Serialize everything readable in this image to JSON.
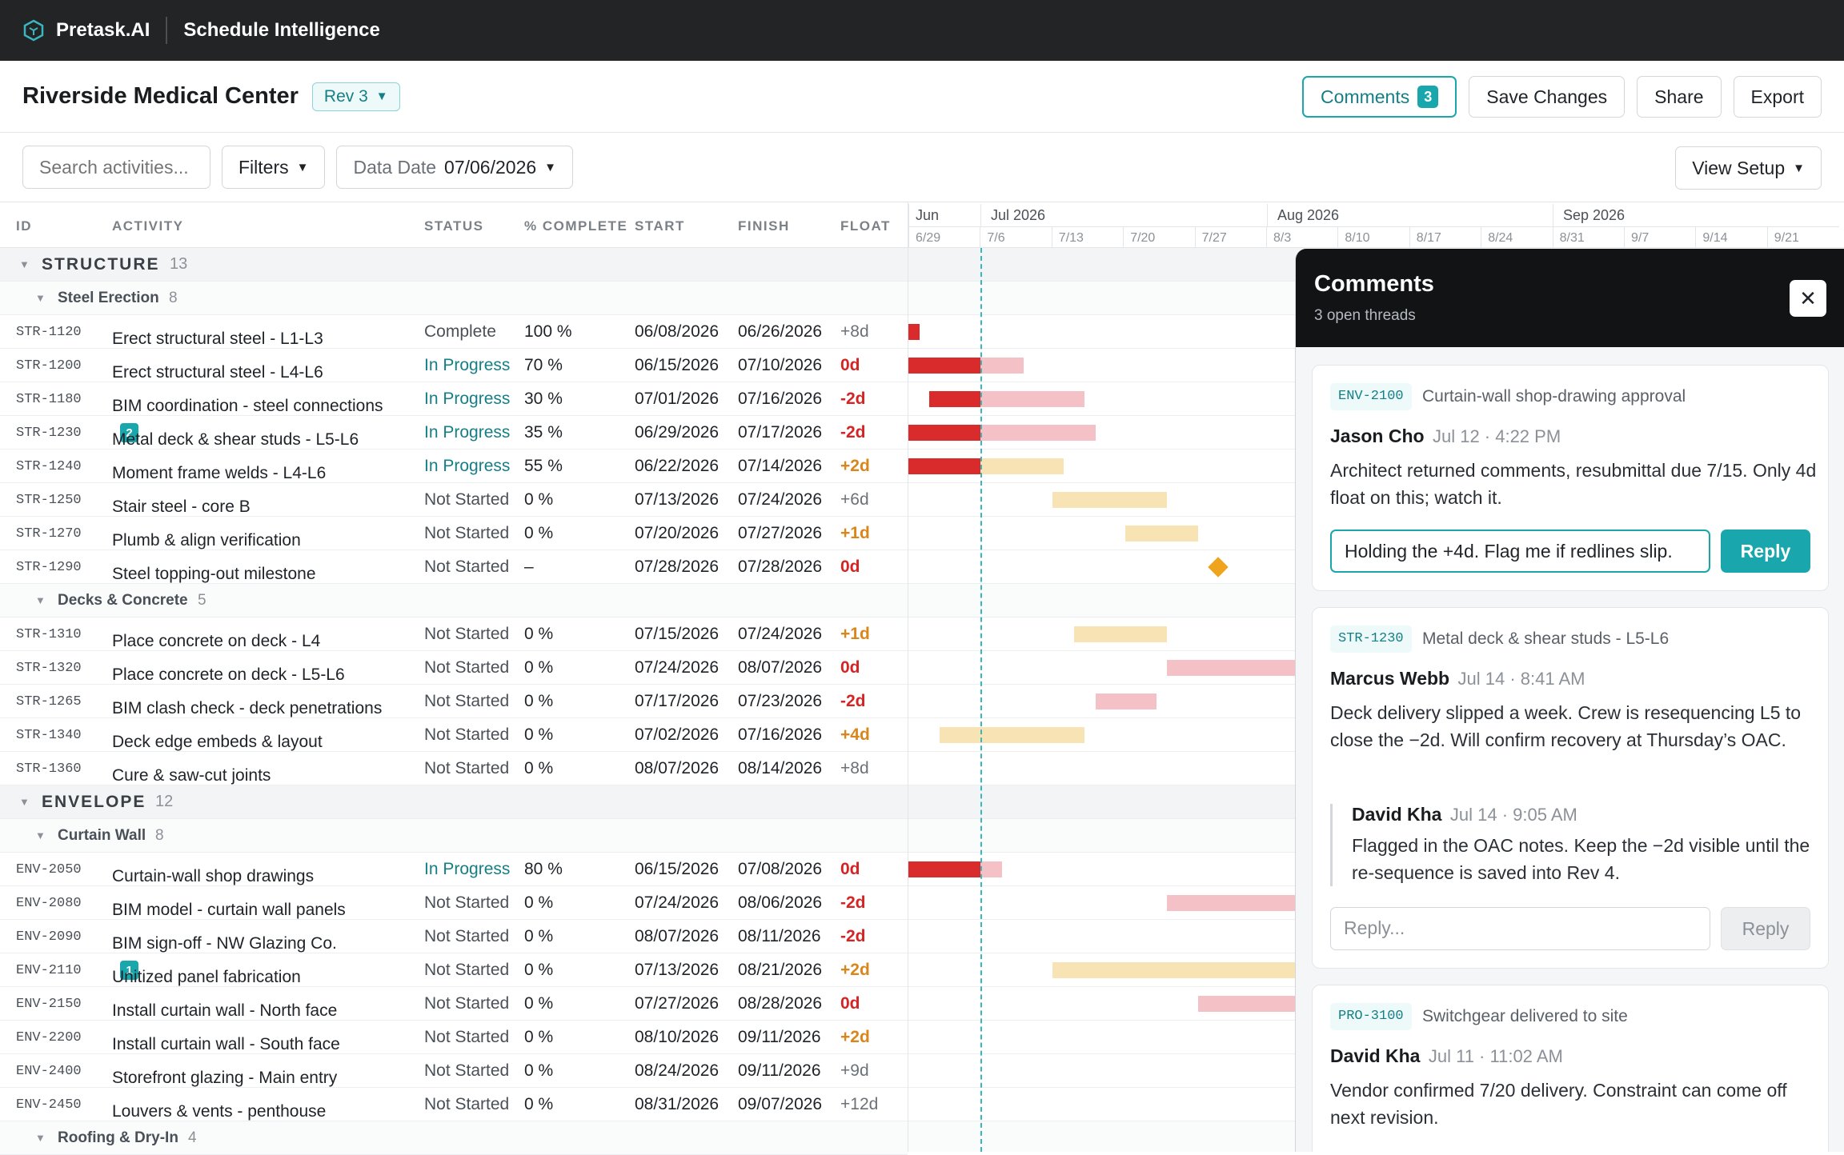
{
  "topbar": {
    "brand": "Pretask.AI",
    "app": "Schedule Intelligence"
  },
  "header": {
    "title": "Riverside Medical Center",
    "revision": "Rev 3",
    "comments_label": "Comments",
    "comments_count": "3",
    "save_label": "Save Changes",
    "share_label": "Share",
    "export_label": "Export"
  },
  "toolbar": {
    "search_placeholder": "Search activities...",
    "filters_label": "Filters",
    "data_date_label": "Data Date",
    "data_date_value": "07/06/2026",
    "view_setup_label": "View Setup"
  },
  "columns": {
    "id": "ID",
    "activity": "ACTIVITY",
    "status": "STATUS",
    "pct": "% COMPLETE",
    "start": "START",
    "finish": "FINISH",
    "float": "FLOAT"
  },
  "timeline": {
    "months": [
      "Jun",
      "Jul 2026",
      "Aug 2026",
      "Sep 2026"
    ],
    "weeks": [
      "6/29",
      "7/6",
      "7/13",
      "7/20",
      "7/27",
      "8/3",
      "8/10",
      "8/17",
      "8/24",
      "8/31",
      "9/7",
      "9/14",
      "9/21"
    ]
  },
  "rows": [
    {
      "type": "group",
      "name": "STRUCTURE",
      "count": "13"
    },
    {
      "type": "sub",
      "name": "Steel Erection",
      "count": "8"
    },
    {
      "type": "act",
      "id": "STR-1120",
      "name": "Erect structural steel - L1-L3",
      "status": "Complete",
      "pct": "100 %",
      "start": "06/08/2026",
      "finish": "06/26/2026",
      "float": "+8d",
      "float_kind": "pos",
      "st": "c",
      "bar": {
        "done": [
          0,
          14
        ],
        "rest": null,
        "kind": "red"
      }
    },
    {
      "type": "act",
      "id": "STR-1200",
      "name": "Erect structural steel - L4-L6",
      "status": "In Progress",
      "pct": "70 %",
      "start": "06/15/2026",
      "finish": "07/10/2026",
      "float": "0d",
      "float_kind": "red",
      "st": "ip",
      "bar": {
        "done": [
          0,
          90
        ],
        "rest": [
          90,
          144
        ],
        "kind": "red"
      }
    },
    {
      "type": "act",
      "id": "STR-1180",
      "name": "BIM coordination - steel connections",
      "status": "In Progress",
      "pct": "30 %",
      "start": "07/01/2026",
      "finish": "07/16/2026",
      "float": "-2d",
      "float_kind": "red",
      "st": "ip",
      "bar": {
        "done": [
          26,
          90
        ],
        "rest": [
          90,
          220
        ],
        "kind": "red"
      }
    },
    {
      "type": "act",
      "id": "STR-1230",
      "name": "Metal deck & shear studs - L5-L6",
      "badge": "2",
      "status": "In Progress",
      "pct": "35 %",
      "start": "06/29/2026",
      "finish": "07/17/2026",
      "float": "-2d",
      "float_kind": "red",
      "st": "ip",
      "bar": {
        "done": [
          0,
          90
        ],
        "rest": [
          90,
          234
        ],
        "kind": "red"
      }
    },
    {
      "type": "act",
      "id": "STR-1240",
      "name": "Moment frame welds - L4-L6",
      "status": "In Progress",
      "pct": "55 %",
      "start": "06/22/2026",
      "finish": "07/14/2026",
      "float": "+2d",
      "float_kind": "org",
      "st": "ip",
      "bar": {
        "done": [
          0,
          90
        ],
        "rest": [
          90,
          194
        ],
        "kind": "org"
      }
    },
    {
      "type": "act",
      "id": "STR-1250",
      "name": "Stair steel - core B",
      "status": "Not Started",
      "pct": "0 %",
      "start": "07/13/2026",
      "finish": "07/24/2026",
      "float": "+6d",
      "float_kind": "pos",
      "st": "ns",
      "bar": {
        "done": null,
        "rest": [
          180,
          323
        ],
        "kind": "org"
      }
    },
    {
      "type": "act",
      "id": "STR-1270",
      "name": "Plumb & align verification",
      "status": "Not Started",
      "pct": "0 %",
      "start": "07/20/2026",
      "finish": "07/27/2026",
      "float": "+1d",
      "float_kind": "org",
      "st": "ns",
      "bar": {
        "done": null,
        "rest": [
          271,
          362
        ],
        "kind": "org"
      }
    },
    {
      "type": "act",
      "id": "STR-1290",
      "name": "Steel topping-out milestone",
      "status": "Not Started",
      "pct": "–",
      "start": "07/28/2026",
      "finish": "07/28/2026",
      "float": "0d",
      "float_kind": "red",
      "st": "ns",
      "bar": {
        "milestone": 378
      }
    },
    {
      "type": "sub",
      "name": "Decks & Concrete",
      "count": "5"
    },
    {
      "type": "act",
      "id": "STR-1310",
      "name": "Place concrete on deck - L4",
      "status": "Not Started",
      "pct": "0 %",
      "start": "07/15/2026",
      "finish": "07/24/2026",
      "float": "+1d",
      "float_kind": "org",
      "st": "ns",
      "bar": {
        "done": null,
        "rest": [
          207,
          323
        ],
        "kind": "org"
      }
    },
    {
      "type": "act",
      "id": "STR-1320",
      "name": "Place concrete on deck - L5-L6",
      "status": "Not Started",
      "pct": "0 %",
      "start": "07/24/2026",
      "finish": "08/07/2026",
      "float": "0d",
      "float_kind": "red",
      "st": "ns",
      "bar": {
        "done": null,
        "rest": [
          323,
          520
        ],
        "kind": "red"
      }
    },
    {
      "type": "act",
      "id": "STR-1265",
      "name": "BIM clash check - deck penetrations",
      "status": "Not Started",
      "pct": "0 %",
      "start": "07/17/2026",
      "finish": "07/23/2026",
      "float": "-2d",
      "float_kind": "red",
      "st": "ns",
      "bar": {
        "done": null,
        "rest": [
          234,
          310
        ],
        "kind": "red"
      }
    },
    {
      "type": "act",
      "id": "STR-1340",
      "name": "Deck edge embeds & layout",
      "status": "Not Started",
      "pct": "0 %",
      "start": "07/02/2026",
      "finish": "07/16/2026",
      "float": "+4d",
      "float_kind": "org",
      "st": "ns",
      "bar": {
        "done": null,
        "rest": [
          39,
          220
        ],
        "kind": "org"
      }
    },
    {
      "type": "act",
      "id": "STR-1360",
      "name": "Cure & saw-cut joints",
      "status": "Not Started",
      "pct": "0 %",
      "start": "08/07/2026",
      "finish": "08/14/2026",
      "float": "+8d",
      "float_kind": "pos",
      "st": "ns",
      "bar": {
        "done": null,
        "rest": null
      }
    },
    {
      "type": "group",
      "name": "ENVELOPE",
      "count": "12"
    },
    {
      "type": "sub",
      "name": "Curtain Wall",
      "count": "8"
    },
    {
      "type": "act",
      "id": "ENV-2050",
      "name": "Curtain-wall shop drawings",
      "status": "In Progress",
      "pct": "80 %",
      "start": "06/15/2026",
      "finish": "07/08/2026",
      "float": "0d",
      "float_kind": "red",
      "st": "ip",
      "bar": {
        "done": [
          0,
          90
        ],
        "rest": [
          90,
          117
        ],
        "kind": "red"
      }
    },
    {
      "type": "act",
      "id": "ENV-2080",
      "name": "BIM model - curtain wall panels",
      "status": "Not Started",
      "pct": "0 %",
      "start": "07/24/2026",
      "finish": "08/06/2026",
      "float": "-2d",
      "float_kind": "red",
      "st": "ns",
      "bar": {
        "done": null,
        "rest": [
          323,
          520
        ],
        "kind": "red"
      }
    },
    {
      "type": "act",
      "id": "ENV-2090",
      "name": "BIM sign-off - NW Glazing Co.",
      "status": "Not Started",
      "pct": "0 %",
      "start": "08/07/2026",
      "finish": "08/11/2026",
      "float": "-2d",
      "float_kind": "red",
      "st": "ns",
      "bar": {
        "done": null,
        "rest": null
      }
    },
    {
      "type": "act",
      "id": "ENV-2110",
      "name": "Unitized panel fabrication",
      "badge": "1",
      "status": "Not Started",
      "pct": "0 %",
      "start": "07/13/2026",
      "finish": "08/21/2026",
      "float": "+2d",
      "float_kind": "org",
      "st": "ns",
      "bar": {
        "done": null,
        "rest": [
          180,
          520
        ],
        "kind": "org"
      }
    },
    {
      "type": "act",
      "id": "ENV-2150",
      "name": "Install curtain wall - North face",
      "status": "Not Started",
      "pct": "0 %",
      "start": "07/27/2026",
      "finish": "08/28/2026",
      "float": "0d",
      "float_kind": "red",
      "st": "ns",
      "bar": {
        "done": null,
        "rest": [
          362,
          520
        ],
        "kind": "red"
      }
    },
    {
      "type": "act",
      "id": "ENV-2200",
      "name": "Install curtain wall - South face",
      "status": "Not Started",
      "pct": "0 %",
      "start": "08/10/2026",
      "finish": "09/11/2026",
      "float": "+2d",
      "float_kind": "org",
      "st": "ns",
      "bar": {
        "done": null,
        "rest": null
      }
    },
    {
      "type": "act",
      "id": "ENV-2400",
      "name": "Storefront glazing - Main entry",
      "status": "Not Started",
      "pct": "0 %",
      "start": "08/24/2026",
      "finish": "09/11/2026",
      "float": "+9d",
      "float_kind": "pos",
      "st": "ns",
      "bar": {
        "done": null,
        "rest": null
      }
    },
    {
      "type": "act",
      "id": "ENV-2450",
      "name": "Louvers & vents - penthouse",
      "status": "Not Started",
      "pct": "0 %",
      "start": "08/31/2026",
      "finish": "09/07/2026",
      "float": "+12d",
      "float_kind": "pos",
      "st": "ns",
      "bar": {
        "done": null,
        "rest": null
      }
    },
    {
      "type": "sub",
      "name": "Roofing & Dry-In",
      "count": "4"
    }
  ],
  "comments": {
    "title": "Comments",
    "subtitle": "3 open threads",
    "threads": [
      {
        "tag": "ENV-2100",
        "title": "Curtain-wall shop-drawing approval",
        "author": "Jason Cho",
        "when": "Jul 12 · 4:22 PM",
        "body": "Architect returned comments, resubmittal due 7/15. Only 4d float on this; watch it.",
        "reply_value": "Holding the +4d. Flag me if redlines slip.",
        "reply_label": "Reply"
      },
      {
        "tag": "STR-1230",
        "title": "Metal deck & shear studs - L5-L6",
        "author": "Marcus Webb",
        "when": "Jul 14 · 8:41 AM",
        "body": "Deck delivery slipped a week. Crew is resequencing L5 to close the −2d. Will confirm recovery at Thursday’s OAC.",
        "reply_author": "David Kha",
        "reply_when": "Jul 14 · 9:05 AM",
        "reply_body": "Flagged in the OAC notes. Keep the −2d visible until the re-sequence is saved into Rev 4.",
        "reply_placeholder": "Reply...",
        "reply_label": "Reply"
      },
      {
        "tag": "PRO-3100",
        "title": "Switchgear delivered to site",
        "author": "David Kha",
        "when": "Jul 11 · 11:02 AM",
        "body": "Vendor confirmed 7/20 delivery. Constraint can come off next revision."
      }
    ]
  }
}
